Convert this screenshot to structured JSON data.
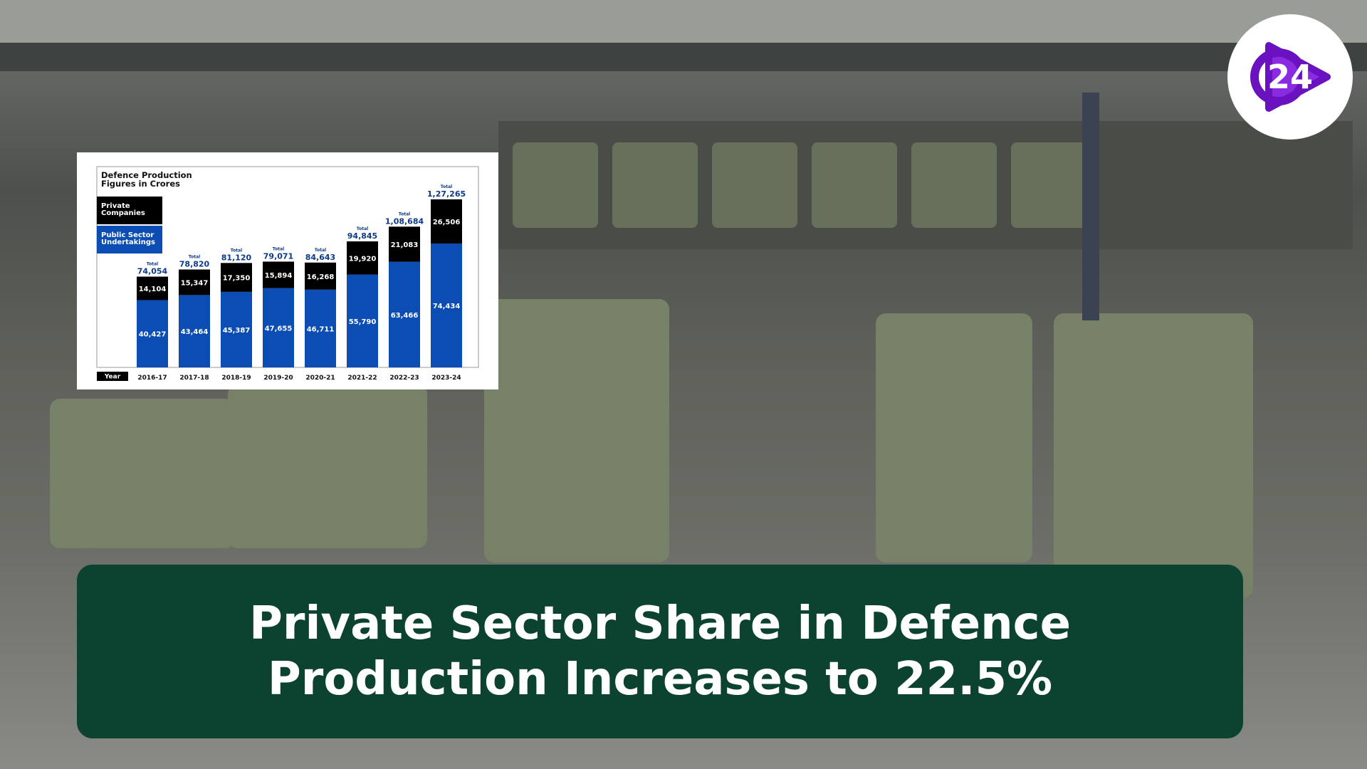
{
  "chart_data": {
    "type": "stacked-bar",
    "title": "Defence Production Figures in Crores",
    "x_label": "Year",
    "categories": [
      "2016-17",
      "2017-18",
      "2018-19",
      "2019-20",
      "2020-21",
      "2021-22",
      "2022-23",
      "2023-24"
    ],
    "series": [
      {
        "name": "Public Sector Undertakings",
        "color": "#0b4db3",
        "values": [
          40427,
          43464,
          45387,
          47655,
          46711,
          55790,
          63466,
          74434
        ],
        "value_labels": [
          "40,427",
          "43,464",
          "45,387",
          "47,655",
          "46,711",
          "55,790",
          "63,466",
          "74,434"
        ]
      },
      {
        "name": "Private Companies",
        "color": "#000000",
        "values": [
          14104,
          15347,
          17350,
          15894,
          16268,
          19920,
          21083,
          26506
        ],
        "value_labels": [
          "14,104",
          "15,347",
          "17,350",
          "15,894",
          "16,268",
          "19,920",
          "21,083",
          "26,506"
        ]
      }
    ],
    "totals": {
      "label": "Total",
      "values": [
        74054,
        78820,
        81120,
        79071,
        84643,
        94845,
        108684,
        127265
      ],
      "value_labels": [
        "74,054",
        "78,820",
        "81,120",
        "79,071",
        "84,643",
        "94,845",
        "1,08,684",
        "1,27,265"
      ]
    }
  },
  "headline": "Private Sector Share in Defence Production Increases to 22.5%",
  "logo": "24"
}
